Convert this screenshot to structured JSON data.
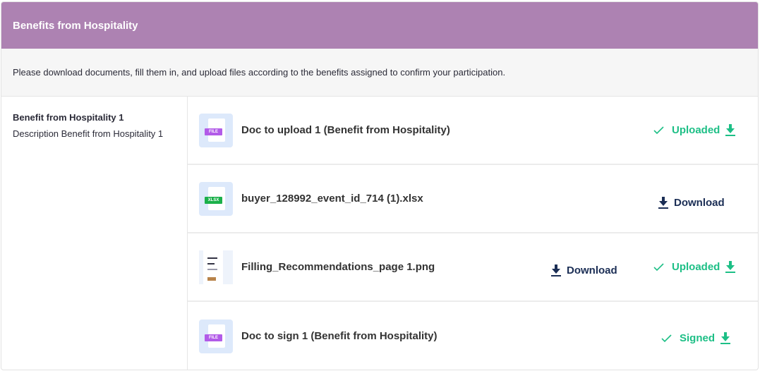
{
  "header": {
    "title": "Benefits from Hospitality"
  },
  "intro": "Please download documents, fill them in, and upload files according to the benefits assigned to confirm your participation.",
  "benefit": {
    "title": "Benefit from Hospitality 1",
    "description": "Description Benefit from Hospitality 1"
  },
  "colors": {
    "header": "#ad82b2",
    "success": "#1dbf86",
    "primary": "#1b2e55",
    "file_tag": "#b25be8",
    "xlsx_tag": "#1bb04a"
  },
  "documents": [
    {
      "name": "Doc to upload 1 (Benefit from Hospitality)",
      "icon": "file-icon",
      "tag": "FILE",
      "status": "Uploaded"
    },
    {
      "name": "buyer_128992_event_id_714 (1).xlsx",
      "icon": "xlsx-icon",
      "tag": "XLSX",
      "download": "Download"
    },
    {
      "name": "Filling_Recommendations_page 1.png",
      "icon": "image-thumbnail",
      "download": "Download",
      "status": "Uploaded"
    },
    {
      "name": "Doc to sign 1 (Benefit from Hospitality)",
      "icon": "file-icon",
      "tag": "FILE",
      "status": "Signed"
    }
  ]
}
